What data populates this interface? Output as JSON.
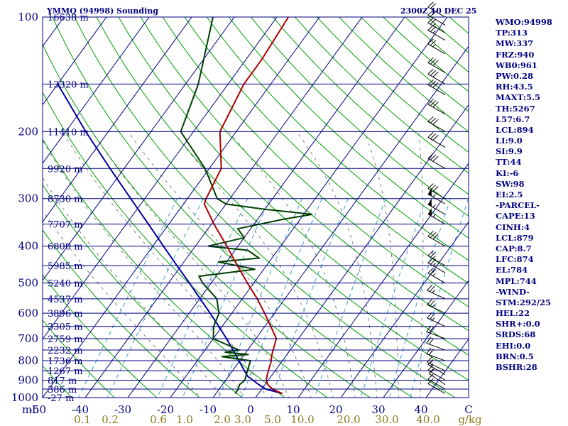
{
  "header": {
    "station": "YMMQ (94998) Sounding",
    "time": "2300Z 10 DEC 25"
  },
  "indices": [
    "WMO:94998",
    "TP:313",
    "MW:337",
    "FRZ:940",
    "WB0:961",
    "PW:0.28",
    "RH:43.5",
    "MAXT:5.5",
    "TH:5267",
    "L57:6.7",
    "LCL:894",
    "LI:9.0",
    "SI:9.9",
    "TT:44",
    "KI:-6",
    "SW:98",
    "EI:2.5",
    "-PARCEL-",
    "CAPE:13",
    "CINH:4",
    "LCL:879",
    "CAP:8.7",
    "LFC:874",
    "EL:784",
    "MPL:744",
    "-WIND-",
    "STM:292/25",
    "HEL:22",
    "SHR+:0.0",
    "SRDS:68",
    "EHI:0.0",
    "BRN:0.5",
    "BSHR:28"
  ],
  "colors": {
    "frame": "#000080",
    "temperature": "#b00000",
    "dewpoint": "#004000",
    "parcel": "#0000a0",
    "dry_adiabat": "#00a000",
    "mixing_ratio": "#3aa0d0",
    "moist_adiabat": "#606060",
    "mixing_label": "#8b7a1a"
  },
  "chart_data": {
    "type": "skew-t",
    "pressure_axis": {
      "unit": "mb",
      "ticks": [
        100,
        200,
        300,
        400,
        500,
        600,
        700,
        800,
        900,
        1000
      ],
      "range": [
        1000,
        100
      ],
      "scale": "log"
    },
    "temperature_axis": {
      "ticks": [
        -50,
        -40,
        -30,
        -20,
        -10,
        0,
        10,
        20,
        30,
        40
      ],
      "range": [
        -50,
        50
      ]
    },
    "height_labels": [
      {
        "p": 100,
        "label": "16638 m"
      },
      {
        "p": 150,
        "label": "13320 m"
      },
      {
        "p": 200,
        "label": "11410 m"
      },
      {
        "p": 250,
        "label": "9920 m"
      },
      {
        "p": 300,
        "label": "8730 m"
      },
      {
        "p": 350,
        "label": "7707 m"
      },
      {
        "p": 400,
        "label": "6800 m"
      },
      {
        "p": 450,
        "label": "5985 m"
      },
      {
        "p": 500,
        "label": "5240 m"
      },
      {
        "p": 550,
        "label": "4537 m"
      },
      {
        "p": 600,
        "label": "3896 m"
      },
      {
        "p": 650,
        "label": "3305 m"
      },
      {
        "p": 700,
        "label": "2759 m"
      },
      {
        "p": 750,
        "label": "2232 m"
      },
      {
        "p": 800,
        "label": "1736 m"
      },
      {
        "p": 850,
        "label": "1267 m"
      },
      {
        "p": 900,
        "label": "817 m"
      },
      {
        "p": 950,
        "label": "386 m"
      },
      {
        "p": 1000,
        "label": "-27 m"
      }
    ],
    "mixing_ratio_labels": [
      "0.1",
      "0.2",
      "0.6",
      "1.0",
      "2.0",
      "3.0",
      "5.0",
      "10.0",
      "20.0",
      "30.0",
      "40.0"
    ],
    "mixing_ratio_unit": "g/kg",
    "temperature": [
      [
        976,
        5.6
      ],
      [
        950,
        2.5
      ],
      [
        925,
        0.7
      ],
      [
        900,
        -0.5
      ],
      [
        850,
        -1.6
      ],
      [
        800,
        -2.6
      ],
      [
        780,
        -3.3
      ],
      [
        750,
        -4.0
      ],
      [
        700,
        -5.2
      ],
      [
        650,
        -8.6
      ],
      [
        600,
        -12.3
      ],
      [
        550,
        -16.5
      ],
      [
        500,
        -21.5
      ],
      [
        450,
        -26.8
      ],
      [
        400,
        -32.6
      ],
      [
        350,
        -39.4
      ],
      [
        310,
        -45.1
      ],
      [
        300,
        -45.6
      ],
      [
        250,
        -47.2
      ],
      [
        200,
        -53.8
      ],
      [
        150,
        -56.3
      ],
      [
        130,
        -56.3
      ],
      [
        100,
        -57.3
      ]
    ],
    "dewpoint": [
      [
        976,
        -5.5
      ],
      [
        950,
        -5.5
      ],
      [
        925,
        -6.0
      ],
      [
        900,
        -5.5
      ],
      [
        850,
        -6.5
      ],
      [
        800,
        -7.5
      ],
      [
        780,
        -15
      ],
      [
        770,
        -9
      ],
      [
        760,
        -15
      ],
      [
        750,
        -12
      ],
      [
        700,
        -20
      ],
      [
        650,
        -22
      ],
      [
        600,
        -23
      ],
      [
        550,
        -26
      ],
      [
        500,
        -32
      ],
      [
        480,
        -34
      ],
      [
        460,
        -22
      ],
      [
        440,
        -32
      ],
      [
        430,
        -23
      ],
      [
        410,
        -27
      ],
      [
        400,
        -37
      ],
      [
        380,
        -30
      ],
      [
        360,
        -33
      ],
      [
        340,
        -24
      ],
      [
        330,
        -18
      ],
      [
        320,
        -30
      ],
      [
        310,
        -40
      ],
      [
        300,
        -43
      ],
      [
        250,
        -51
      ],
      [
        200,
        -63
      ],
      [
        150,
        -67
      ],
      [
        100,
        -75
      ]
    ],
    "parcel": [
      [
        976,
        5.6
      ],
      [
        950,
        1.0
      ],
      [
        925,
        -1.4
      ],
      [
        900,
        -3.6
      ],
      [
        879,
        -5.5
      ],
      [
        850,
        -7.2
      ],
      [
        800,
        -10.2
      ],
      [
        750,
        -13.4
      ],
      [
        700,
        -16.9
      ],
      [
        650,
        -20.8
      ],
      [
        600,
        -25.1
      ],
      [
        550,
        -29.9
      ],
      [
        500,
        -35.1
      ],
      [
        450,
        -41
      ],
      [
        400,
        -47.5
      ],
      [
        350,
        -54.8
      ],
      [
        300,
        -63.3
      ],
      [
        250,
        -73.3
      ],
      [
        200,
        -85.3
      ],
      [
        150,
        -100
      ]
    ],
    "wind_barbs": [
      {
        "p": 976,
        "dir": 300,
        "spd": 10
      },
      {
        "p": 950,
        "dir": 300,
        "spd": 10
      },
      {
        "p": 925,
        "dir": 305,
        "spd": 10
      },
      {
        "p": 900,
        "dir": 300,
        "spd": 15
      },
      {
        "p": 870,
        "dir": 300,
        "spd": 15
      },
      {
        "p": 850,
        "dir": 295,
        "spd": 15
      },
      {
        "p": 800,
        "dir": 290,
        "spd": 20
      },
      {
        "p": 750,
        "dir": 290,
        "spd": 20
      },
      {
        "p": 700,
        "dir": 290,
        "spd": 20
      },
      {
        "p": 650,
        "dir": 295,
        "spd": 25
      },
      {
        "p": 600,
        "dir": 295,
        "spd": 25
      },
      {
        "p": 550,
        "dir": 295,
        "spd": 25
      },
      {
        "p": 500,
        "dir": 300,
        "spd": 25
      },
      {
        "p": 470,
        "dir": 300,
        "spd": 25
      },
      {
        "p": 450,
        "dir": 300,
        "spd": 25
      },
      {
        "p": 400,
        "dir": 300,
        "spd": 30
      },
      {
        "p": 350,
        "dir": 300,
        "spd": 55
      },
      {
        "p": 330,
        "dir": 300,
        "spd": 55
      },
      {
        "p": 310,
        "dir": 300,
        "spd": 55
      },
      {
        "p": 300,
        "dir": 300,
        "spd": 30
      },
      {
        "p": 250,
        "dir": 300,
        "spd": 30
      },
      {
        "p": 220,
        "dir": 300,
        "spd": 30
      },
      {
        "p": 200,
        "dir": 300,
        "spd": 30
      },
      {
        "p": 180,
        "dir": 300,
        "spd": 30
      },
      {
        "p": 160,
        "dir": 300,
        "spd": 30
      },
      {
        "p": 150,
        "dir": 300,
        "spd": 30
      },
      {
        "p": 140,
        "dir": 300,
        "spd": 30
      },
      {
        "p": 125,
        "dir": 300,
        "spd": 25
      },
      {
        "p": 115,
        "dir": 300,
        "spd": 25
      },
      {
        "p": 110,
        "dir": 300,
        "spd": 25
      },
      {
        "p": 105,
        "dir": 300,
        "spd": 20
      },
      {
        "p": 100,
        "dir": 300,
        "spd": 20
      }
    ]
  }
}
